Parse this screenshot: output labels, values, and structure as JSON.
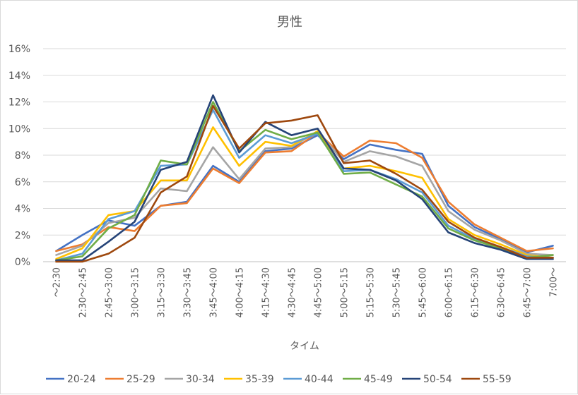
{
  "chart_data": {
    "type": "line",
    "title": "男性",
    "xlabel": "タイム",
    "ylabel": "",
    "ylim": [
      0,
      16
    ],
    "y_ticks": [
      "0%",
      "2%",
      "4%",
      "6%",
      "8%",
      "10%",
      "12%",
      "14%",
      "16%"
    ],
    "grid": true,
    "legend_position": "bottom",
    "categories": [
      "～2:30",
      "2:30～2:45",
      "2:45～3:00",
      "3:00～3:15",
      "3:15～3:30",
      "3:30～3:45",
      "3:45～4:00",
      "4:00～4:15",
      "4:15～4:30",
      "4:30～4:45",
      "4:45～5:00",
      "5:00～5:15",
      "5:15～5:30",
      "5:30～5:45",
      "5:45～6:00",
      "6:00～6:15",
      "6:15～6:30",
      "6:30～6:45",
      "6:45～7:00",
      "7:00～"
    ],
    "series": [
      {
        "name": "20-24",
        "color": "#4472c4",
        "values": [
          0.8,
          2.0,
          3.1,
          2.7,
          4.2,
          4.5,
          7.2,
          6.0,
          8.3,
          8.5,
          9.5,
          7.7,
          8.8,
          8.4,
          8.1,
          4.2,
          2.6,
          1.7,
          0.7,
          1.2
        ]
      },
      {
        "name": "25-29",
        "color": "#ed7d31",
        "values": [
          0.8,
          1.3,
          2.6,
          2.3,
          4.2,
          4.4,
          7.0,
          5.9,
          8.2,
          8.3,
          9.7,
          7.9,
          9.1,
          8.9,
          7.8,
          4.5,
          2.8,
          1.8,
          0.8,
          1.0
        ]
      },
      {
        "name": "30-34",
        "color": "#a5a5a5",
        "values": [
          0.5,
          1.2,
          2.9,
          3.3,
          5.5,
          5.3,
          8.6,
          6.2,
          8.5,
          8.6,
          9.8,
          7.5,
          8.3,
          7.9,
          7.2,
          3.8,
          2.4,
          1.6,
          0.6,
          0.5
        ]
      },
      {
        "name": "35-39",
        "color": "#ffc000",
        "values": [
          0.2,
          1.0,
          3.5,
          3.8,
          6.1,
          6.1,
          10.1,
          7.2,
          9.0,
          8.7,
          9.8,
          7.0,
          7.2,
          6.8,
          6.3,
          3.2,
          2.0,
          1.3,
          0.5,
          0.3
        ]
      },
      {
        "name": "40-44",
        "color": "#5b9bd5",
        "values": [
          0.1,
          0.6,
          3.2,
          3.8,
          7.2,
          7.3,
          11.4,
          7.8,
          9.5,
          8.9,
          9.6,
          6.8,
          6.9,
          6.2,
          5.2,
          2.7,
          1.7,
          1.1,
          0.4,
          0.3
        ]
      },
      {
        "name": "45-49",
        "color": "#70ad47",
        "values": [
          0.1,
          0.4,
          2.5,
          3.5,
          7.6,
          7.3,
          12.0,
          8.3,
          9.9,
          9.2,
          9.7,
          6.6,
          6.7,
          5.8,
          4.9,
          2.5,
          1.6,
          1.0,
          0.3,
          0.5
        ]
      },
      {
        "name": "50-54",
        "color": "#264478",
        "values": [
          0.1,
          0.1,
          1.5,
          3.0,
          6.9,
          7.5,
          12.5,
          8.2,
          10.5,
          9.5,
          10.0,
          7.0,
          6.9,
          6.1,
          4.7,
          2.2,
          1.4,
          0.9,
          0.2,
          0.2
        ]
      },
      {
        "name": "55-59",
        "color": "#9e480e",
        "values": [
          0.0,
          0.0,
          0.6,
          1.8,
          5.2,
          6.4,
          11.7,
          8.5,
          10.4,
          10.6,
          11.0,
          7.4,
          7.6,
          6.6,
          5.4,
          3.0,
          1.8,
          1.1,
          0.3,
          0.3
        ]
      }
    ]
  }
}
